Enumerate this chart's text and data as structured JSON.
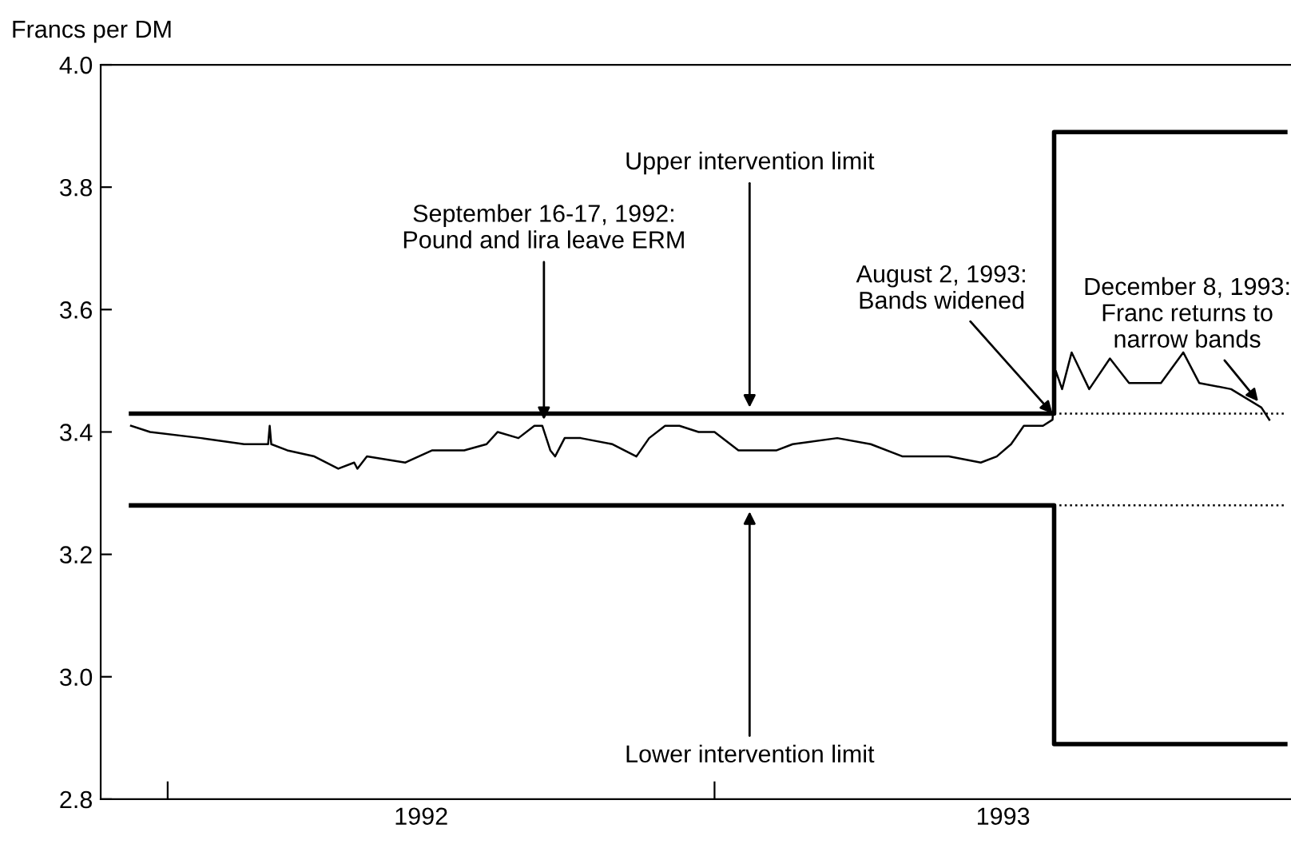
{
  "chart_data": {
    "type": "line",
    "ylabel": "Francs per DM",
    "xlim": [
      "1991-12-13",
      "1993-12-31"
    ],
    "xticks": [
      {
        "value": "1992-01-24",
        "label": null
      },
      {
        "value": "1992-07-01",
        "label": "1992"
      },
      {
        "value": "1993-01-01",
        "label": null
      },
      {
        "value": "1993-07-01",
        "label": "1993"
      }
    ],
    "ylim": [
      2.8,
      4.0
    ],
    "yticks": [
      2.8,
      {
        "value": 3,
        "label": "3.0"
      },
      3.2,
      3.4,
      3.6,
      3.8,
      {
        "value": 4,
        "label": "4.0"
      }
    ],
    "grid": false,
    "legend": false,
    "series": [
      {
        "color": "#000000",
        "line_style": "solid",
        "x": [
          "1992-01-01",
          "1992-01-13",
          "1992-02-14",
          "1992-03-12",
          "1992-03-27",
          "1992-03-28",
          "1992-03-29",
          "1992-04-08",
          "1992-04-25",
          "1992-05-10",
          "1992-05-20",
          "1992-05-22",
          "1992-05-28",
          "1992-06-21",
          "1992-07-08",
          "1992-07-28",
          "1992-08-11",
          "1992-08-18",
          "1992-08-31",
          "1992-09-10",
          "1992-09-15",
          "1992-09-20",
          "1992-09-23",
          "1992-09-29",
          "1992-10-09",
          "1992-10-29",
          "1992-11-13",
          "1992-11-21",
          "1992-12-01",
          "1992-12-10",
          "1992-12-22",
          "1993-01-01",
          "1993-01-16",
          "1993-02-09",
          "1993-02-19",
          "1993-03-19",
          "1993-04-09",
          "1993-04-29",
          "1993-05-13",
          "1993-05-28",
          "1993-06-17",
          "1993-06-27",
          "1993-07-06",
          "1993-07-14",
          "1993-07-26",
          "1993-08-01",
          "1993-08-03",
          "1993-08-07",
          "1993-08-13",
          "1993-08-24",
          "1993-09-06",
          "1993-09-18",
          "1993-10-08",
          "1993-10-22",
          "1993-11-01",
          "1993-11-21",
          "1993-12-10",
          "1993-12-15"
        ],
        "values": [
          3.41,
          3.4,
          3.39,
          3.38,
          3.38,
          3.41,
          3.38,
          3.37,
          3.36,
          3.34,
          3.35,
          3.34,
          3.36,
          3.35,
          3.37,
          3.37,
          3.38,
          3.4,
          3.39,
          3.41,
          3.41,
          3.37,
          3.36,
          3.39,
          3.39,
          3.38,
          3.36,
          3.39,
          3.41,
          3.41,
          3.4,
          3.4,
          3.37,
          3.37,
          3.38,
          3.39,
          3.38,
          3.36,
          3.36,
          3.36,
          3.35,
          3.36,
          3.38,
          3.41,
          3.41,
          3.42,
          3.5,
          3.47,
          3.53,
          3.47,
          3.52,
          3.48,
          3.48,
          3.53,
          3.48,
          3.47,
          3.44,
          3.42
        ]
      },
      {
        "type": "step",
        "color": "#000000",
        "line_style": "solid",
        "x": [
          "1992-01-01",
          "1993-08-02",
          "1993-12-25"
        ],
        "values": [
          3.43,
          3.89,
          3.89
        ]
      },
      {
        "type": "step",
        "color": "#000000",
        "line_style": "solid",
        "x": [
          "1992-01-01",
          "1993-08-02",
          "1993-12-25"
        ],
        "values": [
          3.28,
          2.89,
          2.89
        ]
      },
      {
        "type": "line",
        "color": "#000000",
        "line_style": "dotted",
        "x": [
          "1993-08-02",
          "1993-12-25"
        ],
        "values": [
          3.43,
          3.43
        ]
      },
      {
        "type": "line",
        "color": "#000000",
        "line_style": "dotted",
        "x": [
          "1993-08-02",
          "1993-12-25"
        ],
        "values": [
          3.28,
          3.28
        ]
      }
    ],
    "annotations": [
      {
        "text": "September 16-17, 1992:\nPound and lira leave ERM",
        "x": "1992-09-16",
        "y": 3.42
      },
      {
        "text": "Upper intervention limit",
        "x": "1993-01-23",
        "y": 3.44
      },
      {
        "text": "August 2, 1993:\nBands widened",
        "x": "1993-08-01",
        "y": 3.43
      },
      {
        "text": "December 8, 1993:\nFranc returns to\nnarrow bands",
        "x": "1993-12-08",
        "y": 3.45
      },
      {
        "text": "Lower intervention limit",
        "x": "1993-01-23",
        "y": 3.27
      }
    ]
  }
}
